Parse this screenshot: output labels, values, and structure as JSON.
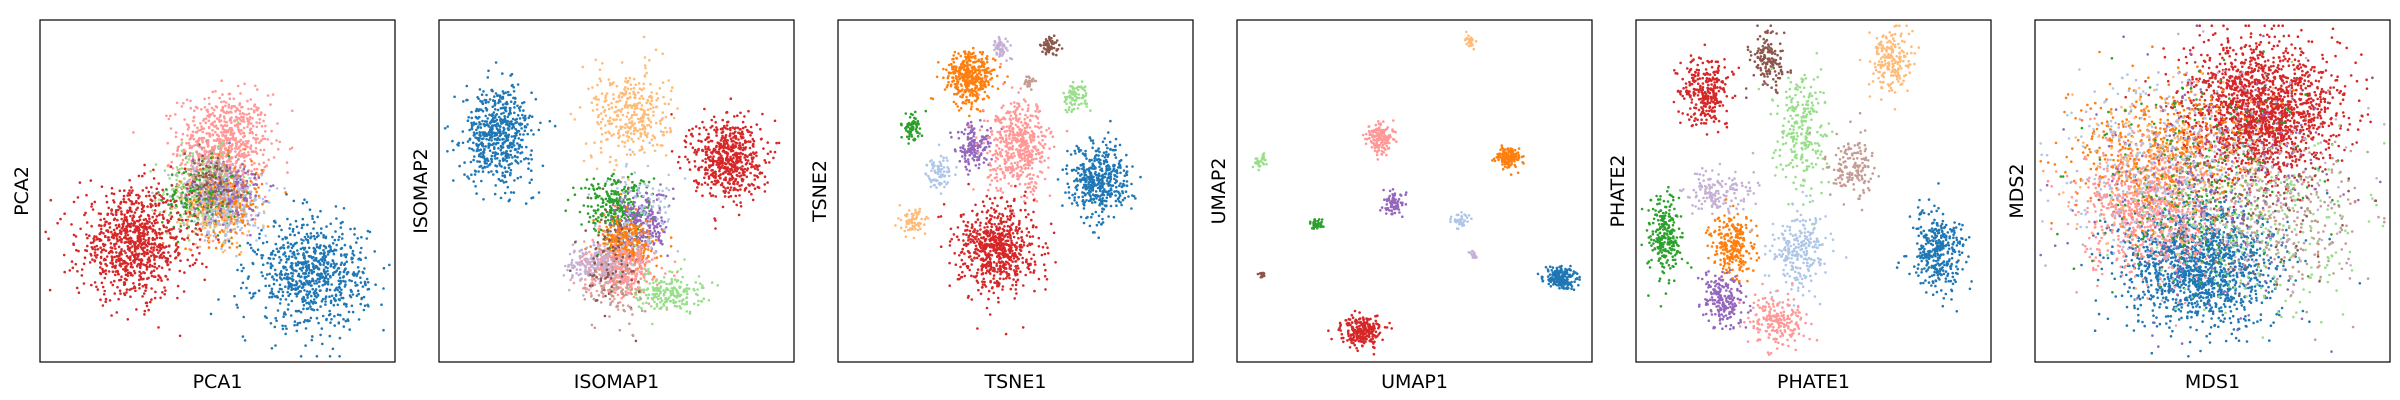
{
  "palette": {
    "blue": "#1f77b4",
    "light_blue": "#aec7e8",
    "orange": "#ff7f0e",
    "light_orange": "#ffbb78",
    "green": "#2ca02c",
    "light_green": "#98df8a",
    "red": "#d62728",
    "pink": "#ff9896",
    "purple": "#9467bd",
    "lilac": "#c5b0d5",
    "brown": "#8c564b",
    "tan": "#c49c94"
  },
  "chart_data": [
    {
      "type": "scatter",
      "xlabel": "PCA1",
      "ylabel": "PCA2",
      "xlim": [
        0,
        100
      ],
      "ylim": [
        0,
        100
      ],
      "ticks": "none",
      "grid": false,
      "clusters": [
        {
          "color": "pink",
          "x": 52,
          "y": 64,
          "sx": 6.5,
          "sy": 7.5,
          "n": 700
        },
        {
          "color": "light_green",
          "x": 46,
          "y": 50,
          "sx": 6,
          "sy": 6,
          "n": 250
        },
        {
          "color": "lilac",
          "x": 50,
          "y": 48,
          "sx": 6,
          "sy": 6,
          "n": 220
        },
        {
          "color": "orange",
          "x": 52,
          "y": 47,
          "sx": 5.5,
          "sy": 6,
          "n": 250
        },
        {
          "color": "green",
          "x": 45,
          "y": 48,
          "sx": 5.5,
          "sy": 5,
          "n": 180
        },
        {
          "color": "light_orange",
          "x": 48,
          "y": 44,
          "sx": 6,
          "sy": 5,
          "n": 160
        },
        {
          "color": "purple",
          "x": 53,
          "y": 50,
          "sx": 5,
          "sy": 5,
          "n": 160
        },
        {
          "color": "light_blue",
          "x": 55,
          "y": 45,
          "sx": 5,
          "sy": 5,
          "n": 120
        },
        {
          "color": "brown",
          "x": 47,
          "y": 52,
          "sx": 5,
          "sy": 5,
          "n": 80
        },
        {
          "color": "tan",
          "x": 50,
          "y": 54,
          "sx": 5,
          "sy": 5,
          "n": 80
        },
        {
          "color": "red",
          "x": 26,
          "y": 34,
          "sx": 8,
          "sy": 8,
          "n": 900
        },
        {
          "color": "blue",
          "x": 77,
          "y": 25,
          "sx": 8,
          "sy": 8,
          "n": 800
        }
      ]
    },
    {
      "type": "scatter",
      "xlabel": "ISOMAP1",
      "ylabel": "ISOMAP2",
      "xlim": [
        0,
        100
      ],
      "ylim": [
        0,
        100
      ],
      "ticks": "none",
      "grid": false,
      "clusters": [
        {
          "color": "blue",
          "x": 16,
          "y": 67,
          "sx": 5,
          "sy": 7,
          "n": 600
        },
        {
          "color": "light_orange",
          "x": 54,
          "y": 73,
          "sx": 5.5,
          "sy": 7,
          "n": 350
        },
        {
          "color": "red",
          "x": 82,
          "y": 60,
          "sx": 5,
          "sy": 6,
          "n": 600
        },
        {
          "color": "green",
          "x": 50,
          "y": 45,
          "sx": 5,
          "sy": 5,
          "n": 300
        },
        {
          "color": "purple",
          "x": 57,
          "y": 40,
          "sx": 4,
          "sy": 5,
          "n": 250
        },
        {
          "color": "orange",
          "x": 53,
          "y": 34,
          "sx": 4,
          "sy": 4,
          "n": 300
        },
        {
          "color": "pink",
          "x": 51,
          "y": 26,
          "sx": 5,
          "sy": 4,
          "n": 400
        },
        {
          "color": "lilac",
          "x": 44,
          "y": 28,
          "sx": 4,
          "sy": 3,
          "n": 200
        },
        {
          "color": "light_green",
          "x": 65,
          "y": 20,
          "sx": 5,
          "sy": 3,
          "n": 200
        },
        {
          "color": "brown",
          "x": 48,
          "y": 30,
          "sx": 4,
          "sy": 8,
          "n": 90
        },
        {
          "color": "tan",
          "x": 50,
          "y": 20,
          "sx": 4,
          "sy": 6,
          "n": 80
        },
        {
          "color": "light_blue",
          "x": 58,
          "y": 46,
          "sx": 6,
          "sy": 8,
          "n": 90
        }
      ]
    },
    {
      "type": "scatter",
      "xlabel": "TSNE1",
      "ylabel": "TSNE2",
      "xlim": [
        0,
        100
      ],
      "ylim": [
        0,
        100
      ],
      "ticks": "none",
      "grid": false,
      "clusters": [
        {
          "color": "lilac",
          "x": 46,
          "y": 93,
          "sx": 1.2,
          "sy": 1.4,
          "n": 60
        },
        {
          "color": "brown",
          "x": 60,
          "y": 93,
          "sx": 1.3,
          "sy": 1.5,
          "n": 60
        },
        {
          "color": "orange",
          "x": 37,
          "y": 84,
          "sx": 3.5,
          "sy": 4,
          "n": 400
        },
        {
          "color": "tan",
          "x": 54,
          "y": 83,
          "sx": 0.7,
          "sy": 0.9,
          "n": 25
        },
        {
          "color": "light_green",
          "x": 67,
          "y": 78,
          "sx": 1.8,
          "sy": 2.3,
          "n": 80
        },
        {
          "color": "green",
          "x": 20,
          "y": 69,
          "sx": 1.5,
          "sy": 2,
          "n": 70
        },
        {
          "color": "purple",
          "x": 38,
          "y": 63,
          "sx": 2.5,
          "sy": 3.3,
          "n": 150
        },
        {
          "color": "pink",
          "x": 51,
          "y": 63,
          "sx": 4.5,
          "sy": 6.5,
          "n": 500
        },
        {
          "color": "light_blue",
          "x": 28,
          "y": 56,
          "sx": 1.8,
          "sy": 2.5,
          "n": 80
        },
        {
          "color": "blue",
          "x": 74,
          "y": 53,
          "sx": 4.2,
          "sy": 5.5,
          "n": 450
        },
        {
          "color": "light_orange",
          "x": 21,
          "y": 41,
          "sx": 1.8,
          "sy": 2,
          "n": 70
        },
        {
          "color": "red",
          "x": 45,
          "y": 33,
          "sx": 5.5,
          "sy": 6.5,
          "n": 700
        }
      ]
    },
    {
      "type": "scatter",
      "xlabel": "UMAP1",
      "ylabel": "UMAP2",
      "xlim": [
        0,
        100
      ],
      "ylim": [
        0,
        100
      ],
      "ticks": "none",
      "grid": false,
      "clusters": [
        {
          "color": "light_orange",
          "x": 66,
          "y": 95,
          "sx": 0.8,
          "sy": 0.9,
          "n": 30
        },
        {
          "color": "pink",
          "x": 40,
          "y": 66,
          "sx": 1.8,
          "sy": 2.3,
          "n": 150
        },
        {
          "color": "orange",
          "x": 77,
          "y": 60,
          "sx": 1.8,
          "sy": 1.5,
          "n": 150
        },
        {
          "color": "light_green",
          "x": 6,
          "y": 59,
          "sx": 1.0,
          "sy": 1.0,
          "n": 30
        },
        {
          "color": "purple",
          "x": 44,
          "y": 46,
          "sx": 1.5,
          "sy": 1.5,
          "n": 80
        },
        {
          "color": "light_blue",
          "x": 63,
          "y": 41,
          "sx": 1.2,
          "sy": 1.1,
          "n": 40
        },
        {
          "color": "green",
          "x": 22,
          "y": 40,
          "sx": 1.0,
          "sy": 1.0,
          "n": 40
        },
        {
          "color": "lilac",
          "x": 67,
          "y": 31,
          "sx": 0.6,
          "sy": 0.6,
          "n": 15
        },
        {
          "color": "brown",
          "x": 6,
          "y": 25,
          "sx": 0.6,
          "sy": 0.6,
          "n": 15
        },
        {
          "color": "blue",
          "x": 92,
          "y": 24,
          "sx": 2.2,
          "sy": 1.6,
          "n": 200
        },
        {
          "color": "red",
          "x": 35,
          "y": 8,
          "sx": 2.8,
          "sy": 2.2,
          "n": 250
        }
      ]
    },
    {
      "type": "scatter",
      "xlabel": "PHATE1",
      "ylabel": "PHATE2",
      "xlim": [
        0,
        100
      ],
      "ylim": [
        0,
        100
      ],
      "ticks": "none",
      "grid": false,
      "clusters": [
        {
          "color": "brown",
          "x": 37,
          "y": 89,
          "sx": 2.5,
          "sy": 4,
          "n": 150
        },
        {
          "color": "light_orange",
          "x": 72,
          "y": 89,
          "sx": 3,
          "sy": 5,
          "n": 200
        },
        {
          "color": "red",
          "x": 19,
          "y": 80,
          "sx": 3.5,
          "sy": 5,
          "n": 300
        },
        {
          "color": "light_green",
          "x": 47,
          "y": 68,
          "sx": 3.5,
          "sy": 9,
          "n": 250
        },
        {
          "color": "tan",
          "x": 61,
          "y": 57,
          "sx": 3.5,
          "sy": 5,
          "n": 150
        },
        {
          "color": "lilac",
          "x": 22,
          "y": 49,
          "sx": 5,
          "sy": 4,
          "n": 150
        },
        {
          "color": "green",
          "x": 7,
          "y": 36,
          "sx": 2.5,
          "sy": 6,
          "n": 250
        },
        {
          "color": "orange",
          "x": 27,
          "y": 33,
          "sx": 3,
          "sy": 5,
          "n": 250
        },
        {
          "color": "light_blue",
          "x": 46,
          "y": 32,
          "sx": 4,
          "sy": 6,
          "n": 250
        },
        {
          "color": "blue",
          "x": 86,
          "y": 32,
          "sx": 4,
          "sy": 6,
          "n": 350
        },
        {
          "color": "purple",
          "x": 24,
          "y": 17,
          "sx": 3,
          "sy": 4,
          "n": 200
        },
        {
          "color": "pink",
          "x": 40,
          "y": 11,
          "sx": 4,
          "sy": 4,
          "n": 200
        }
      ]
    },
    {
      "type": "scatter",
      "xlabel": "MDS1",
      "ylabel": "MDS2",
      "xlim": [
        0,
        100
      ],
      "ylim": [
        0,
        100
      ],
      "ticks": "none",
      "grid": false,
      "clusters": [
        {
          "color": "red",
          "x": 64,
          "y": 74,
          "sx": 11,
          "sy": 10,
          "n": 1800
        },
        {
          "color": "blue",
          "x": 46,
          "y": 28,
          "sx": 11,
          "sy": 9,
          "n": 1500
        },
        {
          "color": "pink",
          "x": 32,
          "y": 45,
          "sx": 10,
          "sy": 10,
          "n": 900
        },
        {
          "color": "orange",
          "x": 34,
          "y": 62,
          "sx": 12,
          "sy": 10,
          "n": 500
        },
        {
          "color": "light_orange",
          "x": 40,
          "y": 55,
          "sx": 13,
          "sy": 13,
          "n": 250
        },
        {
          "color": "green",
          "x": 45,
          "y": 52,
          "sx": 16,
          "sy": 16,
          "n": 250
        },
        {
          "color": "light_green",
          "x": 65,
          "y": 40,
          "sx": 14,
          "sy": 13,
          "n": 300
        },
        {
          "color": "tan",
          "x": 72,
          "y": 42,
          "sx": 11,
          "sy": 12,
          "n": 250
        },
        {
          "color": "purple",
          "x": 50,
          "y": 50,
          "sx": 17,
          "sy": 17,
          "n": 250
        },
        {
          "color": "lilac",
          "x": 50,
          "y": 56,
          "sx": 16,
          "sy": 16,
          "n": 250
        },
        {
          "color": "light_blue",
          "x": 30,
          "y": 58,
          "sx": 13,
          "sy": 13,
          "n": 200
        },
        {
          "color": "brown",
          "x": 62,
          "y": 52,
          "sx": 15,
          "sy": 15,
          "n": 100
        }
      ]
    }
  ]
}
